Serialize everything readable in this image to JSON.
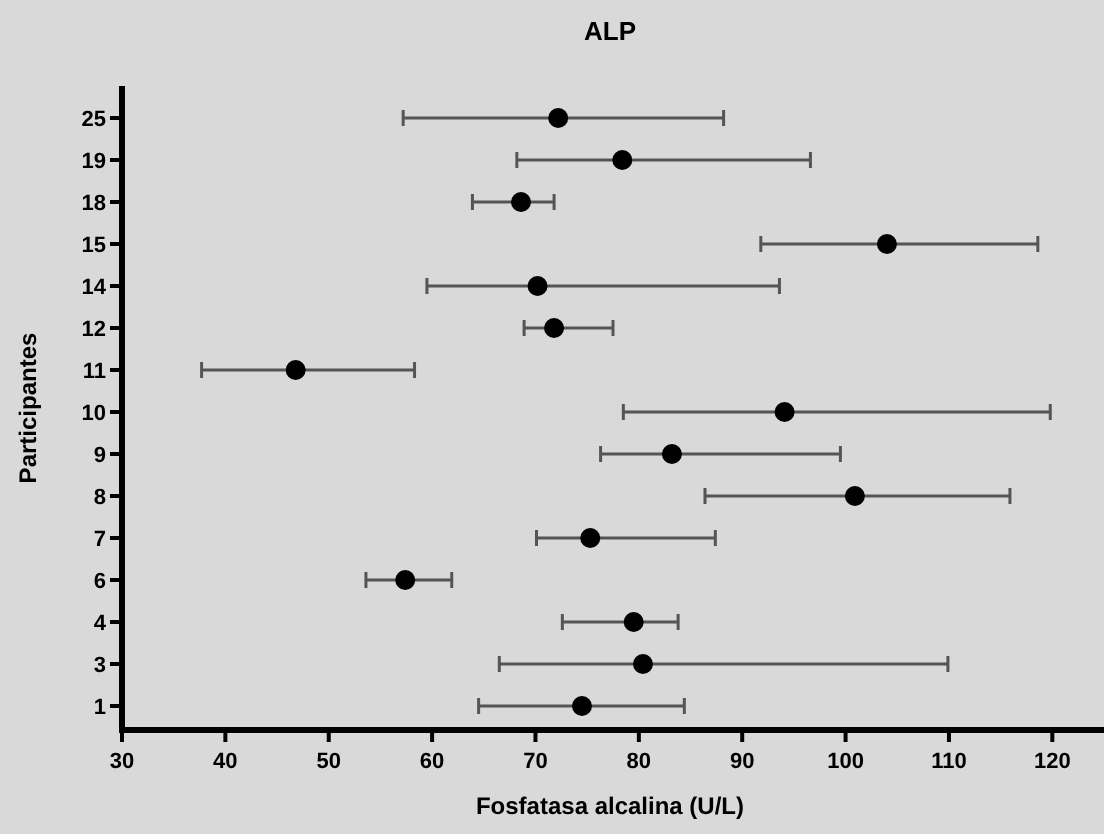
{
  "chart_data": {
    "type": "scatter",
    "orientation": "horizontal",
    "title": "ALP",
    "xlabel": "Fosfatasa alcalina (U/L)",
    "ylabel": "Participantes",
    "categories": [
      "25",
      "19",
      "18",
      "15",
      "14",
      "12",
      "11",
      "10",
      "9",
      "8",
      "7",
      "6",
      "4",
      "3",
      "1"
    ],
    "values": [
      72.2,
      78.4,
      68.6,
      104.0,
      70.2,
      71.8,
      46.8,
      94.1,
      83.2,
      100.9,
      75.3,
      57.4,
      79.5,
      80.4,
      74.5
    ],
    "errors": [
      [
        57.2,
        88.2
      ],
      [
        68.2,
        96.6
      ],
      [
        63.9,
        71.8
      ],
      [
        91.8,
        118.6
      ],
      [
        59.5,
        93.6
      ],
      [
        68.9,
        77.5
      ],
      [
        37.7,
        58.3
      ],
      [
        78.5,
        119.8
      ],
      [
        76.3,
        99.5
      ],
      [
        86.4,
        115.9
      ],
      [
        70.1,
        87.4
      ],
      [
        53.6,
        61.9
      ],
      [
        72.6,
        83.8
      ],
      [
        66.5,
        109.9
      ],
      [
        64.5,
        84.4
      ]
    ],
    "color": "#000000",
    "marker": "circle",
    "xlim": [
      30,
      125
    ],
    "xticks": [
      30,
      40,
      50,
      60,
      70,
      80,
      90,
      100,
      110,
      120
    ],
    "grid": false
  }
}
